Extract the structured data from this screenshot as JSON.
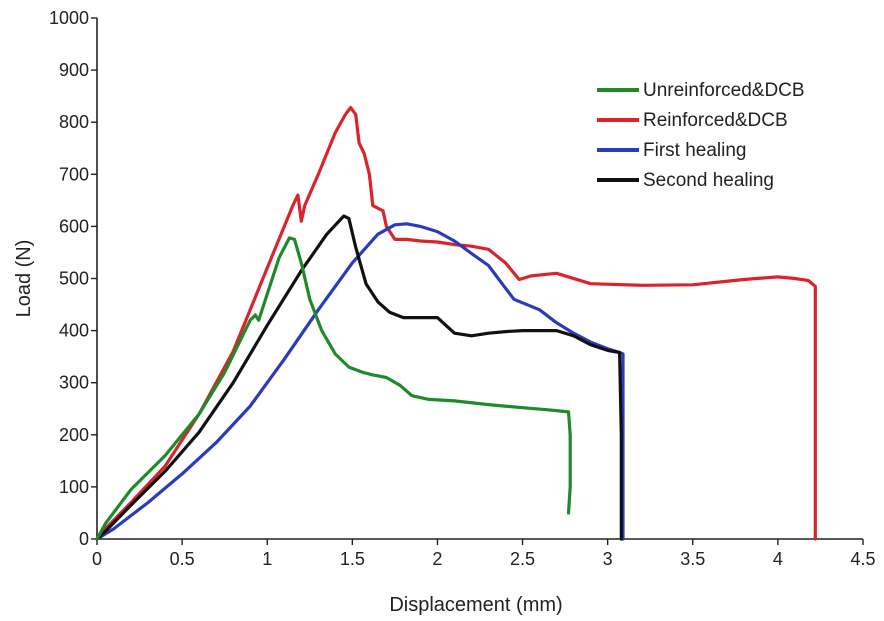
{
  "chart_data": {
    "type": "line",
    "title": "",
    "xlabel": "Displacement (mm)",
    "ylabel": "Load (N)",
    "xlim": [
      0,
      4.5
    ],
    "ylim": [
      0,
      1000
    ],
    "xticks": [
      0,
      0.5,
      1,
      1.5,
      2,
      2.5,
      3,
      3.5,
      4,
      4.5
    ],
    "xtick_labels": [
      "0",
      "0.5",
      "1",
      "1.5",
      "2",
      "2.5",
      "3",
      "3.5",
      "4",
      "4.5"
    ],
    "yticks": [
      0,
      100,
      200,
      300,
      400,
      500,
      600,
      700,
      800,
      900,
      1000
    ],
    "ytick_labels": [
      "0",
      "100",
      "200",
      "300",
      "400",
      "500",
      "600",
      "700",
      "800",
      "900",
      "1000"
    ],
    "grid": false,
    "legend_position": "top-right",
    "series": [
      {
        "name": "Unreinforced&DCB",
        "color": "#1e8a2a",
        "x": [
          0,
          0.05,
          0.2,
          0.4,
          0.6,
          0.75,
          0.9,
          0.93,
          0.95,
          1.0,
          1.07,
          1.13,
          1.16,
          1.2,
          1.25,
          1.32,
          1.4,
          1.48,
          1.56,
          1.62,
          1.7,
          1.78,
          1.85,
          1.95,
          2.1,
          2.3,
          2.5,
          2.65,
          2.77,
          2.78,
          2.78,
          2.77
        ],
        "y": [
          0,
          30,
          95,
          160,
          240,
          320,
          420,
          430,
          420,
          470,
          540,
          578,
          575,
          530,
          460,
          400,
          355,
          330,
          320,
          315,
          310,
          295,
          275,
          268,
          265,
          258,
          252,
          248,
          244,
          200,
          100,
          50
        ]
      },
      {
        "name": "Reinforced&DCB",
        "color": "#d8242a",
        "x": [
          0,
          0.05,
          0.2,
          0.4,
          0.6,
          0.8,
          0.95,
          1.05,
          1.15,
          1.18,
          1.2,
          1.22,
          1.3,
          1.4,
          1.46,
          1.49,
          1.52,
          1.54,
          1.57,
          1.6,
          1.62,
          1.65,
          1.68,
          1.7,
          1.75,
          1.82,
          1.9,
          2.0,
          2.1,
          2.2,
          2.3,
          2.4,
          2.48,
          2.55,
          2.7,
          2.9,
          3.2,
          3.5,
          3.8,
          4.0,
          4.1,
          4.18,
          4.22,
          4.22,
          4.22
        ],
        "y": [
          0,
          20,
          70,
          140,
          240,
          360,
          480,
          560,
          640,
          660,
          610,
          640,
          700,
          780,
          815,
          828,
          815,
          760,
          740,
          700,
          640,
          635,
          630,
          600,
          575,
          575,
          572,
          570,
          565,
          562,
          556,
          530,
          498,
          505,
          510,
          490,
          487,
          488,
          498,
          503,
          500,
          496,
          485,
          250,
          0
        ]
      },
      {
        "name": "First healing",
        "color": "#2a3cbb",
        "x": [
          0,
          0.1,
          0.3,
          0.5,
          0.7,
          0.9,
          1.1,
          1.3,
          1.5,
          1.65,
          1.75,
          1.82,
          1.9,
          2.0,
          2.1,
          2.2,
          2.3,
          2.38,
          2.45,
          2.6,
          2.7,
          2.8,
          2.9,
          3.0,
          3.07,
          3.09,
          3.09,
          3.09
        ],
        "y": [
          0,
          20,
          70,
          125,
          185,
          255,
          345,
          440,
          530,
          585,
          603,
          605,
          600,
          590,
          572,
          548,
          525,
          490,
          460,
          440,
          415,
          395,
          378,
          365,
          358,
          355,
          200,
          0
        ]
      },
      {
        "name": "Second healing",
        "color": "#111111",
        "x": [
          0,
          0.05,
          0.2,
          0.4,
          0.6,
          0.8,
          1.0,
          1.2,
          1.35,
          1.45,
          1.48,
          1.52,
          1.58,
          1.65,
          1.72,
          1.8,
          1.9,
          2.0,
          2.05,
          2.1,
          2.2,
          2.3,
          2.4,
          2.5,
          2.6,
          2.7,
          2.8,
          2.9,
          3.0,
          3.07,
          3.08,
          3.08
        ],
        "y": [
          0,
          15,
          65,
          130,
          205,
          300,
          410,
          515,
          585,
          620,
          615,
          560,
          490,
          455,
          435,
          425,
          425,
          425,
          410,
          395,
          390,
          395,
          398,
          400,
          400,
          400,
          390,
          373,
          362,
          358,
          200,
          0
        ]
      }
    ]
  }
}
